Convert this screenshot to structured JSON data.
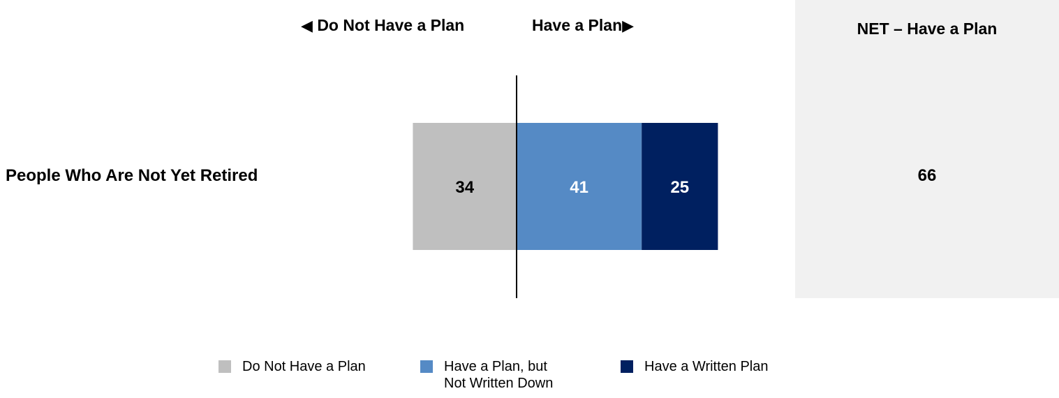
{
  "header": {
    "left_arrow": "◀",
    "left_label": "Do Not Have a Plan",
    "right_label": "Have a Plan",
    "right_arrow": "▶"
  },
  "net": {
    "title": "NET – Have a Plan",
    "value": "66"
  },
  "colors": {
    "do_not_have": "#bfbfbf",
    "not_written": "#558ac5",
    "written": "#002060",
    "net_panel": "#f1f1f1"
  },
  "chart_data": {
    "type": "bar",
    "orientation": "horizontal-diverging-stacked",
    "categories": [
      "People Who Are Not Yet Retired"
    ],
    "series": [
      {
        "name": "Do Not Have a Plan",
        "values": [
          34
        ],
        "color": "#bfbfbf",
        "label_color": "#000000",
        "direction": "left"
      },
      {
        "name": "Have a Plan, but Not Written Down",
        "values": [
          41
        ],
        "color": "#558ac5",
        "label_color": "#ffffff",
        "direction": "right"
      },
      {
        "name": "Have a Written Plan",
        "values": [
          25
        ],
        "color": "#002060",
        "label_color": "#ffffff",
        "direction": "right"
      }
    ],
    "net": {
      "name": "NET – Have a Plan",
      "values": [
        66
      ]
    }
  },
  "legend": [
    {
      "lines": [
        "Do Not Have a Plan"
      ],
      "color": "#bfbfbf"
    },
    {
      "lines": [
        "Have a Plan, but",
        "Not Written Down"
      ],
      "color": "#558ac5"
    },
    {
      "lines": [
        "Have a Written Plan"
      ],
      "color": "#002060"
    }
  ]
}
